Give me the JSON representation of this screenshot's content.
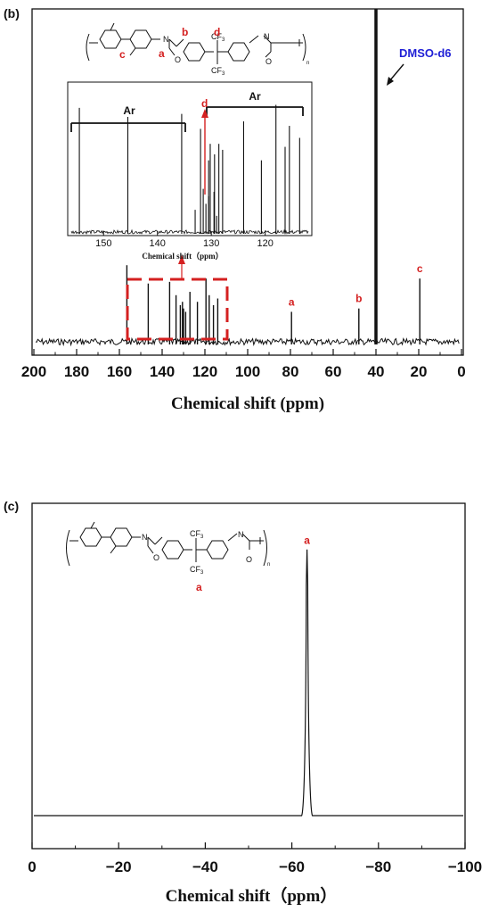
{
  "colors": {
    "red": "#d42020",
    "blue": "#1f1fd6",
    "black": "#111111"
  },
  "chart_data": [
    {
      "panel": "(b)",
      "type": "line",
      "xlabel": "Chemical shift (ppm)",
      "xlim": [
        200,
        0
      ],
      "xticks": [
        200,
        180,
        160,
        140,
        120,
        100,
        80,
        60,
        40,
        20,
        0
      ],
      "peaks": [
        {
          "x": 156.5,
          "y": 0.23
        },
        {
          "x": 146.5,
          "y": 0.175
        },
        {
          "x": 136.5,
          "y": 0.18
        },
        {
          "x": 133.5,
          "y": 0.14
        },
        {
          "x": 131.5,
          "y": 0.11
        },
        {
          "x": 130.5,
          "y": 0.12
        },
        {
          "x": 130.0,
          "y": 0.1
        },
        {
          "x": 129.0,
          "y": 0.09
        },
        {
          "x": 127.0,
          "y": 0.15
        },
        {
          "x": 123.5,
          "y": 0.12
        },
        {
          "x": 119.5,
          "y": 0.19
        },
        {
          "x": 118.0,
          "y": 0.14
        },
        {
          "x": 116.0,
          "y": 0.11
        },
        {
          "x": 114.0,
          "y": 0.13
        },
        {
          "x": 79.5,
          "y": 0.09,
          "label": "a"
        },
        {
          "x": 48.0,
          "y": 0.1,
          "label": "b"
        },
        {
          "x": 40.0,
          "y": 1.0
        },
        {
          "x": 19.5,
          "y": 0.19,
          "label": "c"
        }
      ],
      "annotations": {
        "solvent": "DMSO-d6",
        "structure_labels": [
          "a",
          "b",
          "c",
          "d"
        ],
        "structure_text": {
          "n_atom": "N",
          "o_atom": "O",
          "cf3": "CF",
          "cf3_sub": "3",
          "repeat": "n"
        }
      },
      "inset": {
        "xlabel": "Chemical shift（ppm）",
        "xlim": [
          156,
          112
        ],
        "xticks": [
          150,
          140,
          130,
          120
        ],
        "ar_label": "Ar",
        "d_label": "d",
        "peaks": [
          {
            "x": 154.5,
            "y": 0.84
          },
          {
            "x": 145.5,
            "y": 0.78
          },
          {
            "x": 135.5,
            "y": 0.8
          },
          {
            "x": 133.0,
            "y": 0.16
          },
          {
            "x": 131.5,
            "y": 0.3
          },
          {
            "x": 131.0,
            "y": 0.2
          },
          {
            "x": 130.5,
            "y": 0.25
          },
          {
            "x": 129.5,
            "y": 0.28
          },
          {
            "x": 129.0,
            "y": 0.12
          },
          {
            "x": 130.5,
            "y": 0.49
          },
          {
            "x": 130.2,
            "y": 0.6
          },
          {
            "x": 129.4,
            "y": 0.53
          },
          {
            "x": 128.6,
            "y": 0.6
          },
          {
            "x": 127.9,
            "y": 0.56
          },
          {
            "x": 132.0,
            "y": 0.7
          },
          {
            "x": 124.0,
            "y": 0.75
          },
          {
            "x": 120.7,
            "y": 0.49
          },
          {
            "x": 118.0,
            "y": 0.86
          },
          {
            "x": 116.3,
            "y": 0.58
          },
          {
            "x": 115.5,
            "y": 0.72
          },
          {
            "x": 113.6,
            "y": 0.64
          }
        ]
      }
    },
    {
      "panel": "(c)",
      "type": "line",
      "xlabel": "Chemical shift（ppm）",
      "xlim": [
        0,
        -100
      ],
      "xticks": [
        0,
        -20,
        -40,
        -60,
        -80,
        -100
      ],
      "xtick_labels": [
        "0",
        "−20",
        "−40",
        "−60",
        "−80",
        "−100"
      ],
      "peaks": [
        {
          "x": -63.5,
          "y": 0.95,
          "label": "a"
        }
      ],
      "annotations": {
        "structure_labels": [
          "a"
        ],
        "structure_text": {
          "n_atom": "N",
          "o_atom": "O",
          "cf3": "CF",
          "cf3_sub": "3",
          "repeat": "n"
        }
      }
    }
  ]
}
